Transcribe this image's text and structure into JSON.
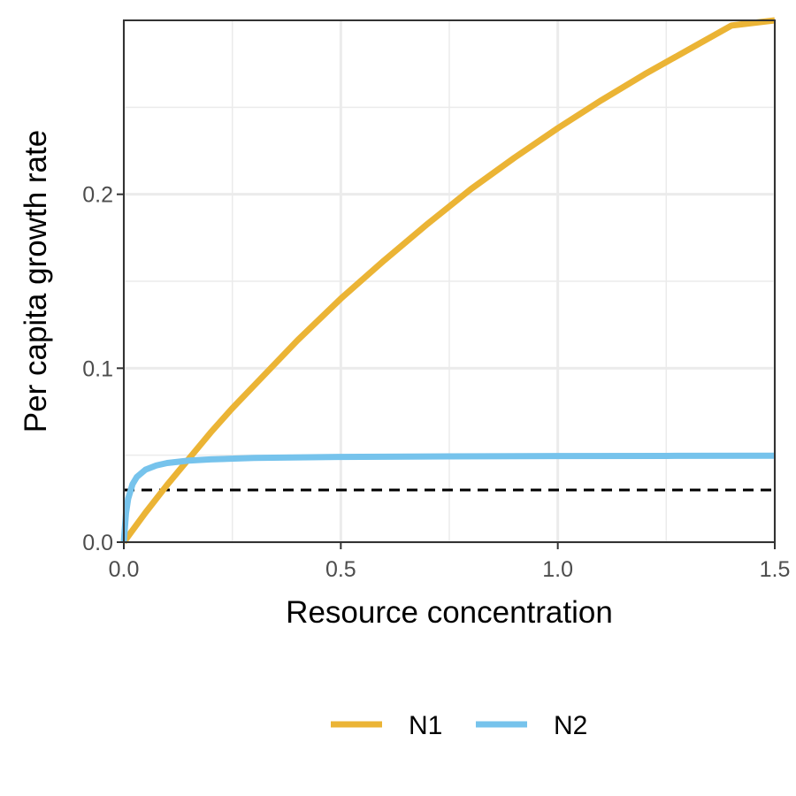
{
  "chart_data": {
    "type": "line",
    "title": "",
    "xlabel": "Resource concentration",
    "ylabel": "Per capita growth rate",
    "xlim": [
      0,
      1.5
    ],
    "ylim": [
      0,
      0.3
    ],
    "x_ticks": [
      0,
      0.5,
      1.0,
      1.5
    ],
    "x_tick_labels": [
      "0.0",
      "0.5",
      "1.0",
      "1.5"
    ],
    "y_ticks": [
      0,
      0.1,
      0.2
    ],
    "y_tick_labels": [
      "0.0",
      "0.1",
      "0.2"
    ],
    "grid": true,
    "legend_position": "bottom",
    "series": [
      {
        "name": "N1",
        "color": "#EBB435",
        "x": [
          0,
          0.05,
          0.1,
          0.15,
          0.2,
          0.25,
          0.3,
          0.4,
          0.5,
          0.6,
          0.7,
          0.75,
          0.8,
          0.9,
          1.0,
          1.1,
          1.2,
          1.3,
          1.4,
          1.5
        ],
        "y": [
          0,
          0.017,
          0.033,
          0.048,
          0.063,
          0.077,
          0.09,
          0.116,
          0.14,
          0.162,
          0.183,
          0.193,
          0.203,
          0.221,
          0.238,
          0.254,
          0.269,
          0.283,
          0.297,
          0.3
        ]
      },
      {
        "name": "N2",
        "color": "#76C3EC",
        "x": [
          0,
          0.005,
          0.01,
          0.02,
          0.03,
          0.05,
          0.075,
          0.1,
          0.15,
          0.2,
          0.3,
          0.5,
          0.75,
          1.0,
          1.25,
          1.5
        ],
        "y": [
          0,
          0.0167,
          0.025,
          0.0333,
          0.0375,
          0.0417,
          0.0441,
          0.0455,
          0.0469,
          0.0476,
          0.0484,
          0.049,
          0.0493,
          0.0495,
          0.0496,
          0.0497
        ]
      }
    ],
    "reference_line": {
      "y": 0.03,
      "style": "dashed",
      "color": "#000000"
    }
  }
}
